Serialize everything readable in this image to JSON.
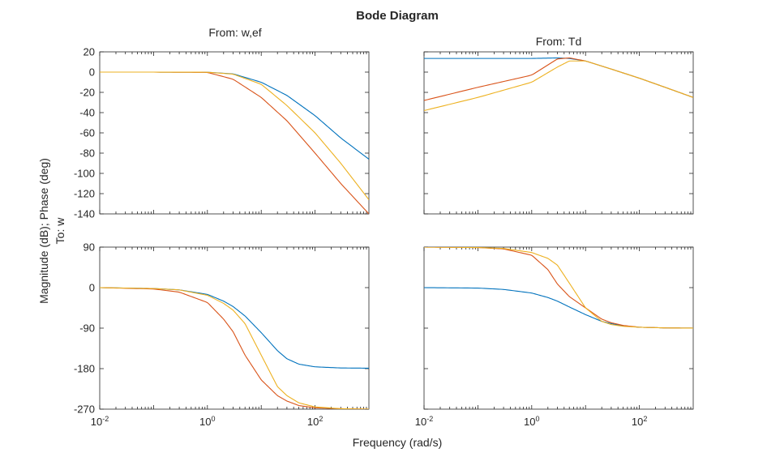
{
  "chart_data": {
    "type": "line",
    "title": "Bode Diagram",
    "xlabel": "Frequency (rad/s)",
    "ylabel": "Magnitude (dB); Phase (deg)",
    "row_label": "To: w",
    "x_scale": "log",
    "xlim": [
      0.01,
      1000
    ],
    "x_ticks": [
      {
        "value": 0.01,
        "base": "10",
        "exp": "-2"
      },
      {
        "value": 1,
        "base": "10",
        "exp": "0"
      },
      {
        "value": 100,
        "base": "10",
        "exp": "2"
      }
    ],
    "grid": false,
    "series_colors": [
      "#0072BD",
      "#D95319",
      "#EDB120"
    ],
    "panels": [
      {
        "id": "mag-w-ef",
        "column_title": "From:  w,ef",
        "quantity": "magnitude",
        "ylim": [
          -140,
          20
        ],
        "y_ticks": [
          "20",
          "0",
          "-20",
          "-40",
          "-60",
          "-80",
          "-100",
          "-120",
          "-140"
        ],
        "show_y_ticklabels": true,
        "series": [
          {
            "x": [
              0.01,
              0.1,
              1,
              3,
              10,
              30,
              100,
              300,
              1000
            ],
            "y": [
              0,
              0,
              -0.1,
              -1.7,
              -10,
              -23,
              -43,
              -65,
              -86
            ]
          },
          {
            "x": [
              0.01,
              0.1,
              1,
              3,
              10,
              30,
              100,
              300,
              1000
            ],
            "y": [
              0,
              0,
              -0.3,
              -7,
              -25,
              -48,
              -80,
              -110,
              -140
            ]
          },
          {
            "x": [
              0.01,
              0.1,
              1,
              3,
              10,
              30,
              100,
              300,
              1000
            ],
            "y": [
              0,
              0,
              -0.1,
              -2,
              -12,
              -33,
              -60,
              -90,
              -126
            ]
          }
        ]
      },
      {
        "id": "mag-td",
        "column_title": "From: Td",
        "quantity": "magnitude",
        "ylim": [
          -140,
          20
        ],
        "y_ticks": [
          "20",
          "0",
          "-20",
          "-40",
          "-60",
          "-80",
          "-100",
          "-120",
          "-140"
        ],
        "show_y_ticklabels": false,
        "series": [
          {
            "x": [
              0.01,
              0.1,
              1,
              3,
              5,
              10,
              30,
              100,
              300,
              1000
            ],
            "y": [
              13.5,
              13.5,
              13.5,
              14,
              13.5,
              11,
              3,
              -6,
              -15,
              -25
            ]
          },
          {
            "x": [
              0.01,
              0.1,
              1,
              3,
              5,
              10,
              30,
              100,
              300,
              1000
            ],
            "y": [
              -28,
              -15,
              -3,
              13,
              14,
              11,
              3,
              -6,
              -15,
              -25
            ]
          },
          {
            "x": [
              0.01,
              0.1,
              1,
              3,
              5,
              10,
              30,
              100,
              300,
              1000
            ],
            "y": [
              -38,
              -25,
              -10,
              5,
              11,
              11,
              3,
              -6,
              -15,
              -25
            ]
          }
        ]
      },
      {
        "id": "phase-w-ef",
        "quantity": "phase",
        "ylim": [
          -270,
          90
        ],
        "y_ticks": [
          "90",
          "0",
          "-90",
          "-180",
          "-270"
        ],
        "show_y_ticklabels": true,
        "series": [
          {
            "x": [
              0.01,
              0.1,
              0.3,
              1,
              2,
              3,
              5,
              10,
              20,
              30,
              50,
              100,
              300,
              1000
            ],
            "y": [
              0,
              -2,
              -5,
              -15,
              -30,
              -42,
              -63,
              -100,
              -140,
              -158,
              -170,
              -176,
              -178.5,
              -179
            ]
          },
          {
            "x": [
              0.01,
              0.1,
              0.3,
              1,
              2,
              3,
              5,
              10,
              20,
              30,
              50,
              100,
              300,
              1000
            ],
            "y": [
              0,
              -3,
              -10,
              -33,
              -70,
              -98,
              -150,
              -205,
              -240,
              -252,
              -262,
              -267,
              -269,
              -270
            ]
          },
          {
            "x": [
              0.01,
              0.1,
              0.3,
              1,
              2,
              3,
              5,
              10,
              20,
              30,
              50,
              100,
              300,
              1000
            ],
            "y": [
              0,
              -2,
              -5,
              -17,
              -35,
              -50,
              -80,
              -150,
              -220,
              -240,
              -256,
              -265,
              -269,
              -270
            ]
          }
        ]
      },
      {
        "id": "phase-td",
        "quantity": "phase",
        "ylim": [
          -270,
          90
        ],
        "y_ticks": [
          "90",
          "0",
          "-90",
          "-180",
          "-270"
        ],
        "show_y_ticklabels": false,
        "series": [
          {
            "x": [
              0.01,
              0.1,
              0.3,
              1,
              2,
              3,
              5,
              10,
              20,
              30,
              50,
              100,
              300,
              1000
            ],
            "y": [
              0,
              -1,
              -4,
              -12,
              -22,
              -30,
              -43,
              -60,
              -75,
              -80,
              -85,
              -88,
              -89.5,
              -90
            ]
          },
          {
            "x": [
              0.01,
              0.1,
              0.3,
              1,
              2,
              3,
              5,
              10,
              20,
              30,
              50,
              100,
              300,
              1000
            ],
            "y": [
              90,
              89,
              86,
              72,
              40,
              8,
              -20,
              -45,
              -70,
              -78,
              -84,
              -88,
              -89.5,
              -90
            ]
          },
          {
            "x": [
              0.01,
              0.1,
              0.3,
              1,
              2,
              3,
              5,
              10,
              20,
              30,
              50,
              100,
              300,
              1000
            ],
            "y": [
              90,
              89,
              87,
              78,
              65,
              50,
              10,
              -45,
              -75,
              -82,
              -86,
              -88,
              -89.5,
              -90
            ]
          }
        ]
      }
    ]
  }
}
